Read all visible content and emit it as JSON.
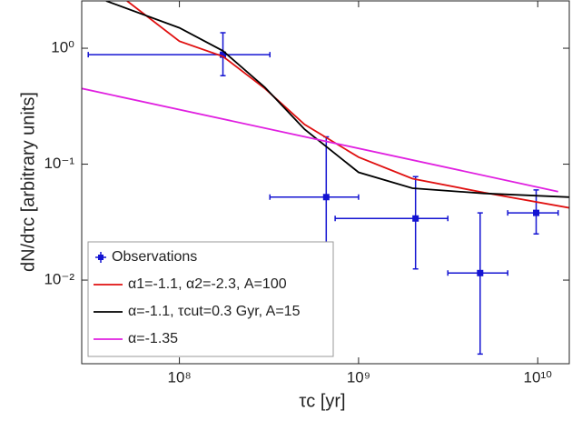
{
  "chart_data": {
    "type": "scatter",
    "xlabel": "τc [yr]",
    "ylabel": "dN/dτc [arbitrary units]",
    "xscale": "log",
    "yscale": "log",
    "xlim": [
      28500000.0,
      15000000000.0
    ],
    "ylim": [
      0.0019,
      2.56
    ],
    "xticks": [
      {
        "value": 100000000,
        "label": "10⁸"
      },
      {
        "value": 1000000000,
        "label": "10⁹"
      },
      {
        "value": 10000000000,
        "label": "10¹⁰"
      }
    ],
    "yticks": [
      {
        "value": 0.01,
        "label": "10⁻²"
      },
      {
        "value": 0.1,
        "label": "10⁻¹"
      },
      {
        "value": 1,
        "label": "10⁰"
      }
    ],
    "legend": "lower left",
    "series": [
      {
        "name": "Observations",
        "type": "errorbar",
        "color": "#1414d2",
        "x": [
          175000000.0,
          660000000.0,
          2080000000.0,
          4770000000.0,
          9800000000.0
        ],
        "values": [
          0.88,
          0.052,
          0.034,
          0.0115,
          0.038
        ],
        "x_low": [
          31000000.0,
          320000000.0,
          740000000.0,
          3150000000.0,
          6800000000.0
        ],
        "x_high": [
          320000000.0,
          1000000000.0,
          3150000000.0,
          6800000000.0,
          13000000000.0
        ],
        "y_low": [
          0.58,
          0.017,
          0.0125,
          0.0023,
          0.025
        ],
        "y_high": [
          1.36,
          0.172,
          0.078,
          0.038,
          0.06
        ]
      },
      {
        "name": "α1=-1.1, α2=-2.3, A=100",
        "type": "line",
        "color": "#e01010",
        "x": [
          51000000.0,
          100000000.0,
          175000000.0,
          300000000.0,
          500000000.0,
          1000000000.0,
          2000000000.0,
          5000000000.0,
          15000000000.0
        ],
        "values": [
          2.56,
          1.15,
          0.85,
          0.45,
          0.22,
          0.115,
          0.075,
          0.057,
          0.042
        ]
      },
      {
        "name": "α=-1.1, τcut=0.3 Gyr, A=15",
        "type": "line",
        "color": "#000000",
        "x": [
          39000000.0,
          100000000.0,
          175000000.0,
          300000000.0,
          500000000.0,
          1000000000.0,
          2000000000.0,
          5000000000.0,
          15000000000.0
        ],
        "values": [
          2.56,
          1.5,
          0.95,
          0.46,
          0.2,
          0.085,
          0.062,
          0.056,
          0.052
        ]
      },
      {
        "name": "α=-1.35",
        "type": "line",
        "color": "#e020e0",
        "x": [
          28500000.0,
          13000000000.0
        ],
        "values": [
          0.45,
          0.058
        ]
      }
    ]
  }
}
